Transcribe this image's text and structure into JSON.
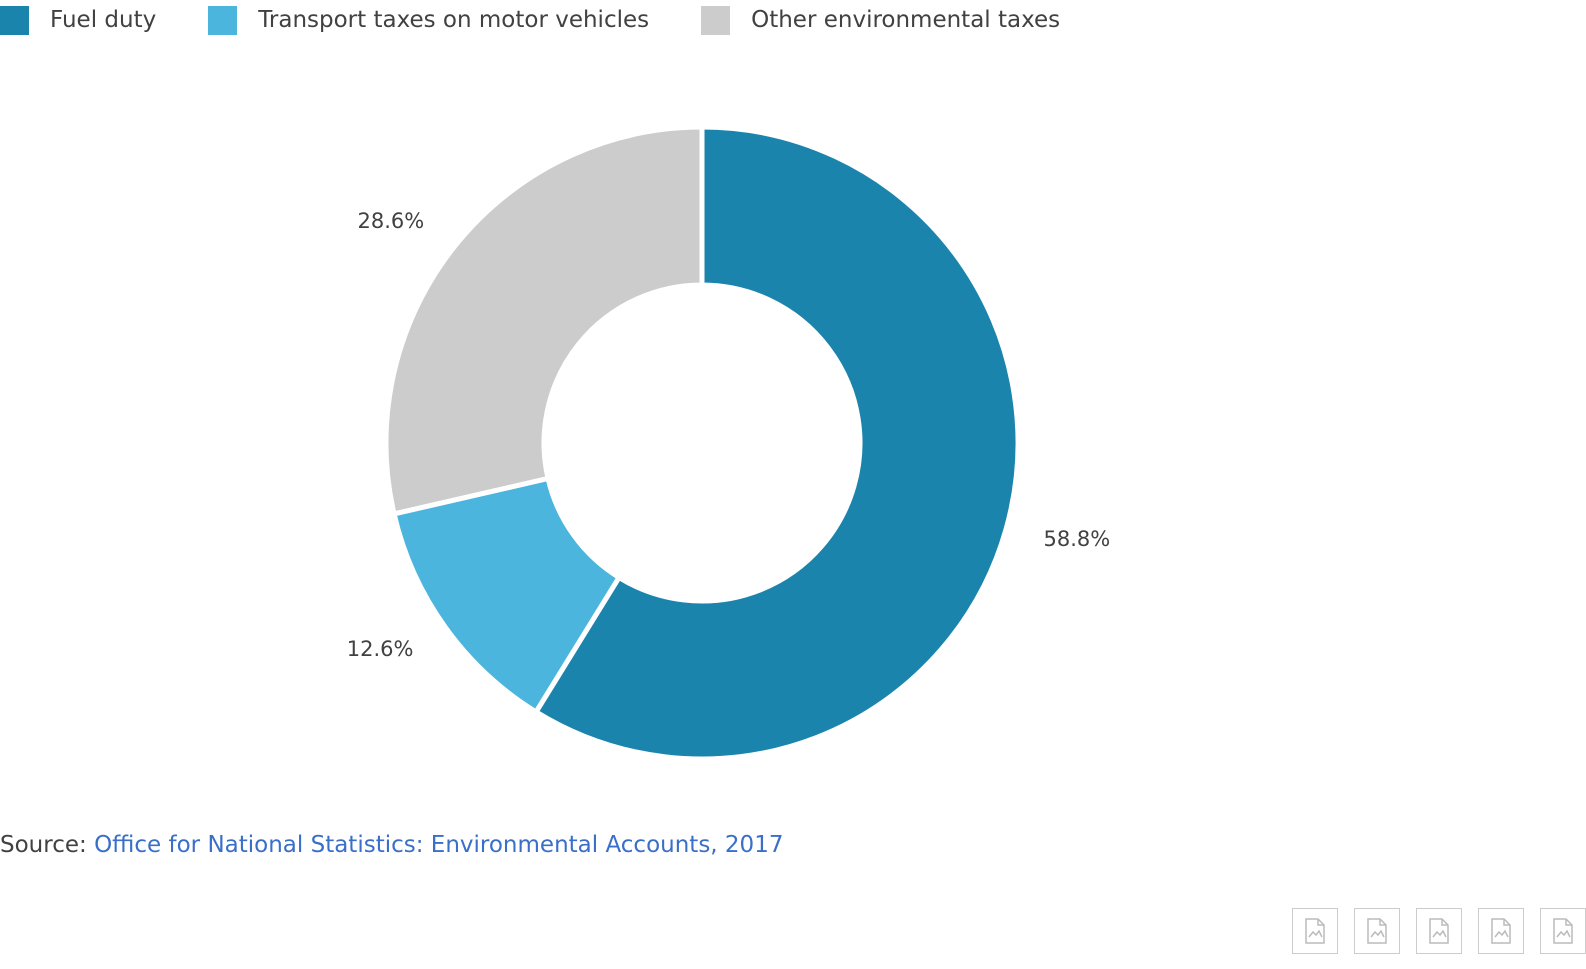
{
  "colors": {
    "fuel_duty": "#1b84ad",
    "transport": "#4bb5de",
    "other": "#cccccc",
    "link": "#3a6fc9",
    "text": "#414042"
  },
  "legend": [
    {
      "label": "Fuel duty",
      "color": "#1b84ad"
    },
    {
      "label": "Transport taxes on motor vehicles",
      "color": "#4bb5de"
    },
    {
      "label": "Other environmental taxes",
      "color": "#cccccc"
    }
  ],
  "chart_data": {
    "type": "pie",
    "donut": true,
    "title": "",
    "series": [
      {
        "name": "Fuel duty",
        "value": 58.8,
        "label": "58.8%",
        "color": "#1b84ad"
      },
      {
        "name": "Transport taxes on motor vehicles",
        "value": 12.6,
        "label": "12.6%",
        "color": "#4bb5de"
      },
      {
        "name": "Other environmental taxes",
        "value": 28.6,
        "label": "28.6%",
        "color": "#cccccc"
      }
    ],
    "legend_position": "top-left"
  },
  "source": {
    "prefix": "Source: ",
    "link_text": "Office for National Statistics: Environmental Accounts, 2017"
  },
  "downloads": [
    {
      "icon": "download-image-icon"
    },
    {
      "icon": "download-image-icon"
    },
    {
      "icon": "download-image-icon"
    },
    {
      "icon": "download-image-icon"
    },
    {
      "icon": "download-image-icon"
    }
  ]
}
